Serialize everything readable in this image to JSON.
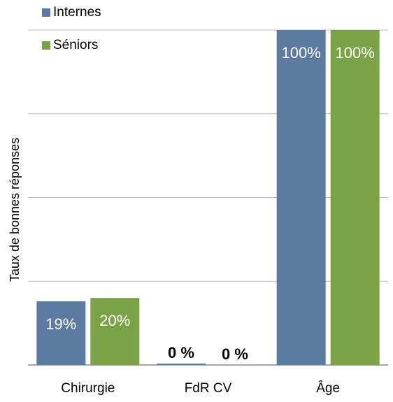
{
  "chart_data": {
    "type": "bar",
    "y_label": "Taux de bonnes réponses",
    "categories": [
      "Chirurgie",
      "FdR CV",
      "Âge"
    ],
    "series": [
      {
        "name": "Internes",
        "color": "#5b7ba3",
        "values": [
          19,
          0.4,
          100
        ],
        "value_labels": [
          "19%",
          "0 %",
          "100%"
        ]
      },
      {
        "name": "Séniors",
        "color": "#79a345",
        "values": [
          20,
          0,
          100
        ],
        "value_labels": [
          "20%",
          "0 %",
          "100%"
        ]
      }
    ],
    "ylim": [
      0,
      100
    ],
    "yticks": [
      0,
      25,
      50,
      75,
      100
    ],
    "grid": true,
    "legend": "top-left"
  }
}
